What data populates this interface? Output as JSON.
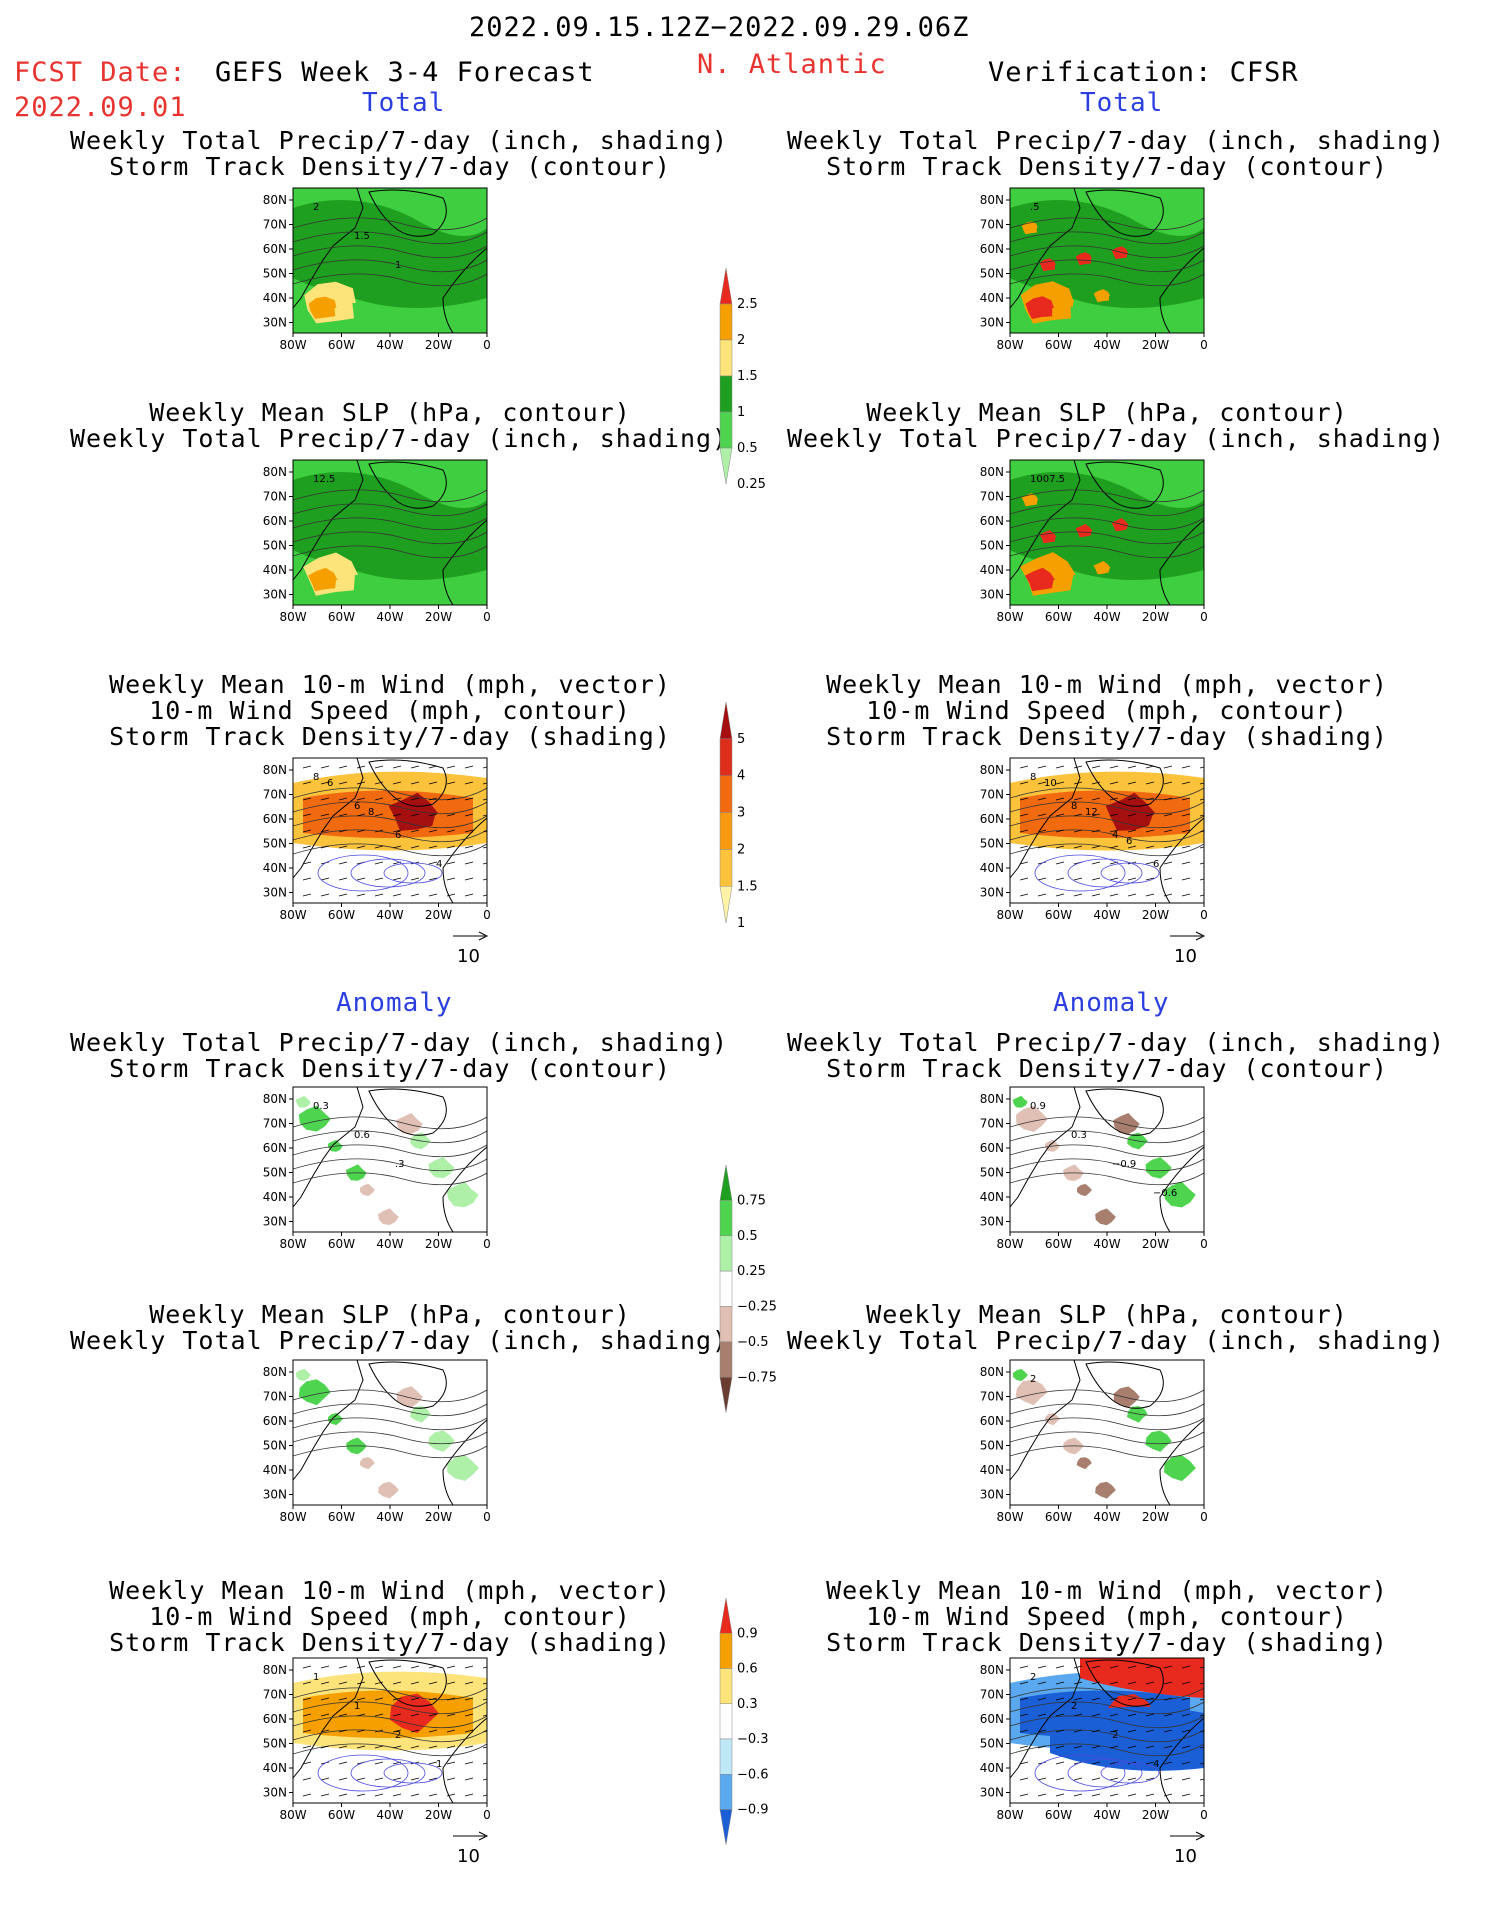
{
  "header": {
    "date_range": "2022.09.15.12Z−2022.09.29.06Z",
    "fcst_label": "FCST Date:",
    "fcst_date": "2022.09.01",
    "model": "GEFS Week 3-4 Forecast",
    "region": "N. Atlantic",
    "verification": "Verification: CFSR"
  },
  "sections": {
    "total": "Total",
    "anomaly": "Anomaly"
  },
  "panel_titles": {
    "precip_track": [
      "Weekly Total Precip/7-day (inch, shading)",
      "Storm Track Density/7-day (contour)"
    ],
    "slp_precip": [
      "Weekly Mean SLP (hPa, contour)",
      "Weekly Total Precip/7-day (inch, shading)"
    ],
    "wind": [
      "Weekly Mean 10-m Wind (mph, vector)",
      "10-m Wind Speed (mph, contour)",
      "Storm Track Density/7-day (shading)"
    ]
  },
  "axes": {
    "lat_ticks": [
      "80N",
      "70N",
      "60N",
      "50N",
      "40N",
      "30N"
    ],
    "lon_ticks": [
      "80W",
      "60W",
      "40W",
      "20W",
      "0"
    ]
  },
  "vector_ref": "10",
  "colorbars": {
    "precip_total": {
      "labels": [
        "2.5",
        "2",
        "1.5",
        "1",
        "0.5",
        "0.25"
      ],
      "colors": [
        "#e8291e",
        "#f5a000",
        "#fde47a",
        "#1f9f1f",
        "#4fd44f",
        "#aef0a8"
      ]
    },
    "track_total": {
      "labels": [
        "5",
        "4",
        "3",
        "2",
        "1.5",
        "1"
      ],
      "colors": [
        "#a50f0f",
        "#de2d1a",
        "#f26a10",
        "#f79a10",
        "#fbc33c",
        "#fff3a8"
      ]
    },
    "precip_anom": {
      "labels": [
        "0.75",
        "0.5",
        "0.25",
        "−0.25",
        "−0.5",
        "−0.75"
      ],
      "colors": [
        "#1f9f1f",
        "#4fd44f",
        "#aef0a8",
        "#ffffff",
        "#e0c0b4",
        "#a87e6e",
        "#6b3d30"
      ]
    },
    "track_anom": {
      "labels": [
        "0.9",
        "0.6",
        "0.3",
        "−0.3",
        "−0.6",
        "−0.9"
      ],
      "colors": [
        "#e8291e",
        "#f5a000",
        "#fde47a",
        "#ffffff",
        "#bfe8f7",
        "#5aa8ef",
        "#1a5fd6"
      ]
    }
  },
  "panels": [
    {
      "id": "fc-total-1",
      "labels": [
        "2",
        "1.5",
        "1"
      ]
    },
    {
      "id": "fc-total-2",
      "labels": [
        "12.5"
      ]
    },
    {
      "id": "fc-total-3",
      "labels": [
        "8",
        "6",
        "6",
        "4",
        "6",
        "8"
      ]
    },
    {
      "id": "ob-total-1",
      "labels": [
        ".5"
      ]
    },
    {
      "id": "ob-total-2",
      "labels": [
        "1007.5"
      ]
    },
    {
      "id": "ob-total-3",
      "labels": [
        "8",
        "8",
        "4",
        "6",
        "10",
        "12",
        "6"
      ]
    },
    {
      "id": "fc-anom-1",
      "labels": [
        "0.3",
        "0.6",
        ".3"
      ]
    },
    {
      "id": "fc-anom-2",
      "labels": []
    },
    {
      "id": "fc-anom-3",
      "labels": [
        "1",
        "1",
        "2",
        "1"
      ]
    },
    {
      "id": "ob-anom-1",
      "labels": [
        "0.9",
        "0.3",
        "−0.9",
        "−0.6"
      ]
    },
    {
      "id": "ob-anom-2",
      "labels": [
        "2"
      ]
    },
    {
      "id": "ob-anom-3",
      "labels": [
        "2",
        "2",
        "2",
        "4"
      ]
    }
  ]
}
